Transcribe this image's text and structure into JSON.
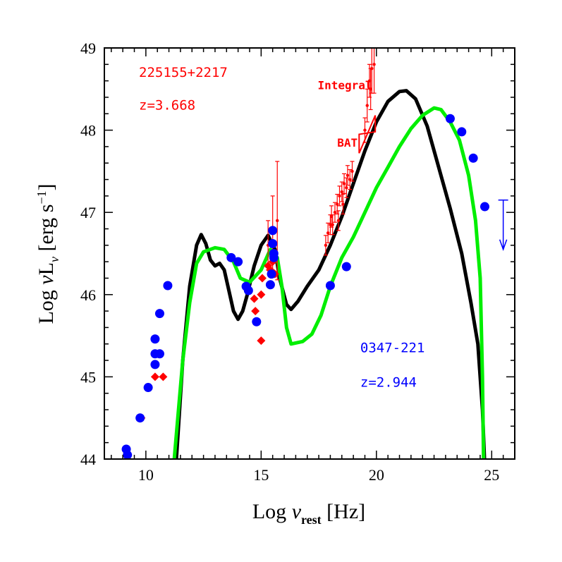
{
  "chart_data": {
    "type": "scatter",
    "xlabel": "Log ν_rest [Hz]",
    "ylabel": "Log νL_ν [erg s⁻¹]",
    "xlim": [
      8.2,
      26
    ],
    "ylim": [
      44,
      49
    ],
    "xticks": [
      10,
      15,
      20,
      25
    ],
    "yticks": [
      44,
      45,
      46,
      47,
      48,
      49
    ],
    "grid": false,
    "annotations": [
      {
        "text": "225155+2217",
        "x": 9.7,
        "y": 48.65,
        "color": "#ff0000"
      },
      {
        "text": "z=3.668",
        "x": 9.7,
        "y": 48.25,
        "color": "#ff0000"
      },
      {
        "text": "Integral",
        "x": 17.45,
        "y": 48.5,
        "color": "#ff0000"
      },
      {
        "text": "BAT",
        "x": 18.3,
        "y": 47.8,
        "color": "#ff0000"
      },
      {
        "text": "0347-221",
        "x": 19.3,
        "y": 45.3,
        "color": "#0000ff"
      },
      {
        "text": "z=2.944",
        "x": 19.3,
        "y": 44.88,
        "color": "#0000ff"
      }
    ],
    "series": [
      {
        "kind": "line",
        "color": "#000000",
        "points": [
          [
            11.3,
            43.9
          ],
          [
            11.6,
            45.2
          ],
          [
            11.9,
            46.1
          ],
          [
            12.2,
            46.6
          ],
          [
            12.4,
            46.73
          ],
          [
            12.6,
            46.62
          ],
          [
            12.8,
            46.42
          ],
          [
            13.0,
            46.35
          ],
          [
            13.2,
            46.38
          ],
          [
            13.4,
            46.3
          ],
          [
            13.6,
            46.05
          ],
          [
            13.8,
            45.8
          ],
          [
            14.0,
            45.7
          ],
          [
            14.2,
            45.8
          ],
          [
            14.4,
            46.0
          ],
          [
            14.7,
            46.35
          ],
          [
            15.0,
            46.6
          ],
          [
            15.3,
            46.72
          ],
          [
            15.6,
            46.55
          ],
          [
            15.8,
            46.2
          ],
          [
            16.1,
            45.88
          ],
          [
            16.3,
            45.82
          ],
          [
            16.6,
            45.92
          ],
          [
            17.0,
            46.1
          ],
          [
            17.5,
            46.3
          ],
          [
            18.0,
            46.6
          ],
          [
            18.5,
            46.95
          ],
          [
            19.0,
            47.35
          ],
          [
            19.5,
            47.75
          ],
          [
            20.0,
            48.1
          ],
          [
            20.5,
            48.35
          ],
          [
            21.0,
            48.47
          ],
          [
            21.3,
            48.48
          ],
          [
            21.7,
            48.38
          ],
          [
            22.2,
            48.05
          ],
          [
            22.7,
            47.55
          ],
          [
            23.2,
            47.05
          ],
          [
            23.7,
            46.5
          ],
          [
            24.1,
            45.9
          ],
          [
            24.4,
            45.4
          ],
          [
            24.6,
            44.6
          ],
          [
            24.7,
            43.9
          ]
        ]
      },
      {
        "kind": "line",
        "color": "#00ee00",
        "points": [
          [
            11.2,
            43.9
          ],
          [
            11.6,
            45.2
          ],
          [
            11.9,
            45.9
          ],
          [
            12.2,
            46.38
          ],
          [
            12.5,
            46.52
          ],
          [
            13.0,
            46.57
          ],
          [
            13.4,
            46.55
          ],
          [
            13.8,
            46.4
          ],
          [
            14.1,
            46.2
          ],
          [
            14.5,
            46.15
          ],
          [
            15.0,
            46.3
          ],
          [
            15.4,
            46.55
          ],
          [
            15.7,
            46.45
          ],
          [
            15.9,
            46.1
          ],
          [
            16.1,
            45.6
          ],
          [
            16.3,
            45.4
          ],
          [
            16.8,
            45.43
          ],
          [
            17.2,
            45.52
          ],
          [
            17.6,
            45.75
          ],
          [
            18.0,
            46.1
          ],
          [
            18.5,
            46.45
          ],
          [
            19.0,
            46.7
          ],
          [
            19.5,
            47.0
          ],
          [
            20.0,
            47.3
          ],
          [
            20.5,
            47.55
          ],
          [
            21.0,
            47.8
          ],
          [
            21.5,
            48.02
          ],
          [
            22.0,
            48.18
          ],
          [
            22.5,
            48.27
          ],
          [
            22.8,
            48.25
          ],
          [
            23.2,
            48.1
          ],
          [
            23.6,
            47.88
          ],
          [
            24.0,
            47.45
          ],
          [
            24.3,
            46.9
          ],
          [
            24.5,
            46.2
          ],
          [
            24.6,
            45.0
          ],
          [
            24.65,
            43.9
          ]
        ]
      },
      {
        "kind": "errorbars",
        "color": "#ff0000",
        "points": [
          [
            15.3,
            46.6,
            0.3
          ],
          [
            15.5,
            46.75,
            0.45
          ],
          [
            15.7,
            46.9,
            0.72
          ],
          [
            17.8,
            46.6,
            0.12
          ],
          [
            17.9,
            46.75,
            0.12
          ],
          [
            18.0,
            46.85,
            0.12
          ],
          [
            18.05,
            46.95,
            0.13
          ],
          [
            18.1,
            46.85,
            0.12
          ],
          [
            18.2,
            47.0,
            0.12
          ],
          [
            18.3,
            47.1,
            0.12
          ],
          [
            18.35,
            46.9,
            0.12
          ],
          [
            18.4,
            47.2,
            0.12
          ],
          [
            18.5,
            47.25,
            0.12
          ],
          [
            18.55,
            47.1,
            0.12
          ],
          [
            18.6,
            47.35,
            0.12
          ],
          [
            18.7,
            47.3,
            0.12
          ],
          [
            18.75,
            47.45,
            0.12
          ],
          [
            18.85,
            47.4,
            0.12
          ],
          [
            18.95,
            47.5,
            0.12
          ],
          [
            19.5,
            48.0,
            0.15
          ],
          [
            19.6,
            48.3,
            0.2
          ],
          [
            19.7,
            48.6,
            0.2
          ],
          [
            19.75,
            48.5,
            0.25
          ],
          [
            19.8,
            48.75,
            0.3
          ],
          [
            19.9,
            48.8,
            0.35
          ]
        ]
      },
      {
        "kind": "diamonds",
        "color": "#ff0000",
        "points": [
          [
            9.8,
            44.5
          ],
          [
            10.4,
            45.0
          ],
          [
            10.75,
            45.0
          ],
          [
            14.7,
            45.95
          ],
          [
            14.75,
            45.8
          ],
          [
            15.0,
            45.44
          ],
          [
            15.0,
            46.0
          ],
          [
            15.05,
            46.2
          ],
          [
            15.3,
            46.35
          ],
          [
            15.4,
            46.3
          ],
          [
            15.5,
            46.4
          ],
          [
            15.6,
            46.25
          ]
        ]
      },
      {
        "kind": "circles",
        "color": "#0000ff",
        "points": [
          [
            9.15,
            44.12
          ],
          [
            9.2,
            44.05
          ],
          [
            9.75,
            44.5
          ],
          [
            10.1,
            44.87
          ],
          [
            10.4,
            45.15
          ],
          [
            10.4,
            45.28
          ],
          [
            10.6,
            45.28
          ],
          [
            10.4,
            45.46
          ],
          [
            10.6,
            45.77
          ],
          [
            10.95,
            46.11
          ],
          [
            13.7,
            46.45
          ],
          [
            14.0,
            46.4
          ],
          [
            14.35,
            46.1
          ],
          [
            14.45,
            46.05
          ],
          [
            14.8,
            45.67
          ],
          [
            15.4,
            46.12
          ],
          [
            15.45,
            46.25
          ],
          [
            15.5,
            46.78
          ],
          [
            15.5,
            46.62
          ],
          [
            15.55,
            46.45
          ],
          [
            15.55,
            46.5
          ],
          [
            18.0,
            46.11
          ],
          [
            18.7,
            46.34
          ],
          [
            23.2,
            48.14
          ],
          [
            23.7,
            47.98
          ],
          [
            24.2,
            47.66
          ],
          [
            24.7,
            47.07
          ]
        ]
      },
      {
        "kind": "upper-limit",
        "color": "#0000ff",
        "points": [
          [
            25.5,
            47.15
          ]
        ]
      }
    ]
  }
}
